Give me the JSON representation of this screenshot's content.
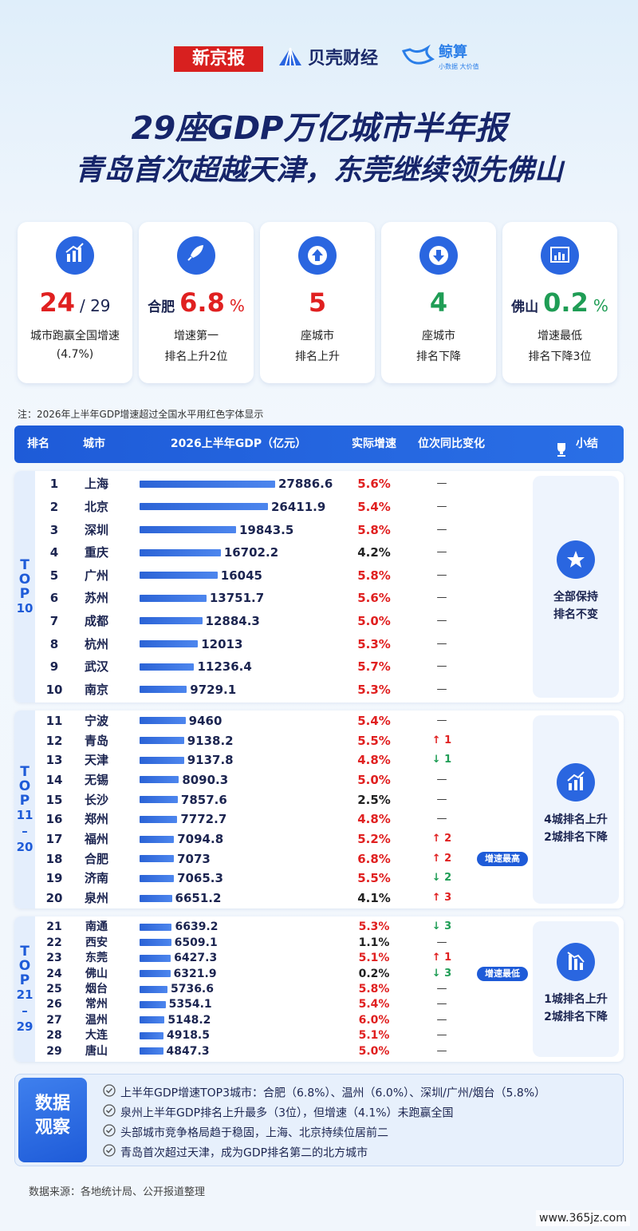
{
  "header": {
    "logos": [
      "新京报",
      "贝壳财经",
      "鲸算",
      "小数据 大价值"
    ],
    "title": [
      "29座GDP万亿城市半年报",
      "青岛首次超越天津，东莞继续领先佛山"
    ]
  },
  "cards": [
    {
      "value": "24",
      "suffix": "/ 29",
      "color": "#e02020",
      "label": "城市跑赢全国增速",
      "sub": "(4.7%)"
    },
    {
      "prefix": "合肥",
      "value": "6.8",
      "suffix": "%",
      "color": "#e02020",
      "label": "增速第一",
      "sub": "排名上升2位"
    },
    {
      "value": "5",
      "color": "#e02020",
      "label": "座城市",
      "sub": "排名上升"
    },
    {
      "value": "4",
      "color": "#1f9d55",
      "label": "座城市",
      "sub": "排名下降"
    },
    {
      "prefix": "佛山",
      "value": "0.2",
      "suffix": "%",
      "color": "#1f9d55",
      "label": "增速最低",
      "sub": "排名下降3位"
    }
  ],
  "note": "注：2026年上半年GDP增速超过全国水平用红色字体显示",
  "table": {
    "columns": [
      "排名",
      "城市",
      "2026上半年GDP（亿元）",
      "实际增速",
      "位次同比变化",
      "小结"
    ],
    "groups": [
      {
        "label": [
          "TOP",
          "10"
        ],
        "summary": [
          "全部保持",
          "排名不变"
        ],
        "rows": [
          {
            "rank": 1,
            "city": "上海",
            "gdp": 27886.6,
            "growth": "5.6%",
            "above": true,
            "change": "—"
          },
          {
            "rank": 2,
            "city": "北京",
            "gdp": 26411.9,
            "growth": "5.4%",
            "above": true,
            "change": "—"
          },
          {
            "rank": 3,
            "city": "深圳",
            "gdp": 19843.5,
            "growth": "5.8%",
            "above": true,
            "change": "—"
          },
          {
            "rank": 4,
            "city": "重庆",
            "gdp": 16702.2,
            "growth": "4.2%",
            "above": false,
            "change": "—"
          },
          {
            "rank": 5,
            "city": "广州",
            "gdp": 16045,
            "growth": "5.8%",
            "above": true,
            "change": "—"
          },
          {
            "rank": 6,
            "city": "苏州",
            "gdp": 13751.7,
            "growth": "5.6%",
            "above": true,
            "change": "—"
          },
          {
            "rank": 7,
            "city": "成都",
            "gdp": 12884.3,
            "growth": "5.0%",
            "above": true,
            "change": "—"
          },
          {
            "rank": 8,
            "city": "杭州",
            "gdp": 12013,
            "growth": "5.3%",
            "above": true,
            "change": "—"
          },
          {
            "rank": 9,
            "city": "武汉",
            "gdp": 11236.4,
            "growth": "5.7%",
            "above": true,
            "change": "—"
          },
          {
            "rank": 10,
            "city": "南京",
            "gdp": 9729.1,
            "growth": "5.3%",
            "above": true,
            "change": "—"
          }
        ]
      },
      {
        "label": [
          "TOP",
          "11",
          "–",
          "20"
        ],
        "summary": [
          "4城排名上升",
          "2城排名下降"
        ],
        "rows": [
          {
            "rank": 11,
            "city": "宁波",
            "gdp": 9460,
            "growth": "5.4%",
            "above": true,
            "change": "—"
          },
          {
            "rank": 12,
            "city": "青岛",
            "gdp": 9138.2,
            "growth": "5.5%",
            "above": true,
            "change": "↑ 1",
            "trend": "up"
          },
          {
            "rank": 13,
            "city": "天津",
            "gdp": 9137.8,
            "growth": "4.8%",
            "above": true,
            "change": "↓ 1",
            "trend": "down"
          },
          {
            "rank": 14,
            "city": "无锡",
            "gdp": 8090.3,
            "growth": "5.0%",
            "above": true,
            "change": "—"
          },
          {
            "rank": 15,
            "city": "长沙",
            "gdp": 7857.6,
            "growth": "2.5%",
            "above": false,
            "change": "—"
          },
          {
            "rank": 16,
            "city": "郑州",
            "gdp": 7772.7,
            "growth": "4.8%",
            "above": true,
            "change": "—"
          },
          {
            "rank": 17,
            "city": "福州",
            "gdp": 7094.8,
            "growth": "5.2%",
            "above": true,
            "change": "↑ 2",
            "trend": "up"
          },
          {
            "rank": 18,
            "city": "合肥",
            "gdp": 7073,
            "growth": "6.8%",
            "above": true,
            "change": "↑ 2",
            "trend": "up",
            "badge": "增速最高"
          },
          {
            "rank": 19,
            "city": "济南",
            "gdp": 7065.3,
            "growth": "5.5%",
            "above": true,
            "change": "↓ 2",
            "trend": "down"
          },
          {
            "rank": 20,
            "city": "泉州",
            "gdp": 6651.2,
            "growth": "4.1%",
            "above": false,
            "change": "↑ 3",
            "trend": "up"
          }
        ]
      },
      {
        "label": [
          "TOP",
          "21",
          "–",
          "29"
        ],
        "summary": [
          "1城排名上升",
          "2城排名下降"
        ],
        "rows": [
          {
            "rank": 21,
            "city": "南通",
            "gdp": 6639.2,
            "growth": "5.3%",
            "above": true,
            "change": "↓ 3",
            "trend": "down"
          },
          {
            "rank": 22,
            "city": "西安",
            "gdp": 6509.1,
            "growth": "1.1%",
            "above": false,
            "change": "—"
          },
          {
            "rank": 23,
            "city": "东莞",
            "gdp": 6427.3,
            "growth": "5.1%",
            "above": true,
            "change": "↑ 1",
            "trend": "up"
          },
          {
            "rank": 24,
            "city": "佛山",
            "gdp": 6321.9,
            "growth": "0.2%",
            "above": false,
            "change": "↓ 3",
            "trend": "down",
            "badge": "增速最低"
          },
          {
            "rank": 25,
            "city": "烟台",
            "gdp": 5736.6,
            "growth": "5.8%",
            "above": true,
            "change": "—"
          },
          {
            "rank": 26,
            "city": "常州",
            "gdp": 5354.1,
            "growth": "5.4%",
            "above": true,
            "change": "—"
          },
          {
            "rank": 27,
            "city": "温州",
            "gdp": 5148.2,
            "growth": "6.0%",
            "above": true,
            "change": "—"
          },
          {
            "rank": 28,
            "city": "大连",
            "gdp": 4918.5,
            "growth": "5.1%",
            "above": true,
            "change": "—"
          },
          {
            "rank": 29,
            "city": "唐山",
            "gdp": 4847.3,
            "growth": "5.0%",
            "above": true,
            "change": "—"
          }
        ]
      }
    ]
  },
  "observe": {
    "title": [
      "数据",
      "观察"
    ],
    "items": [
      "上半年GDP增速TOP3城市：合肥（6.8%）、温州（6.0%）、深圳/广州/烟台（5.8%）",
      "泉州上半年GDP排名上升最多（3位），但增速（4.1%）未跑赢全国",
      "头部城市竞争格局趋于稳固，上海、北京持续位居前二",
      "青岛首次超过天津，成为GDP排名第二的北方城市"
    ]
  },
  "source": "数据来源：各地统计局、公开报道整理",
  "watermark": "www.365jz.com"
}
